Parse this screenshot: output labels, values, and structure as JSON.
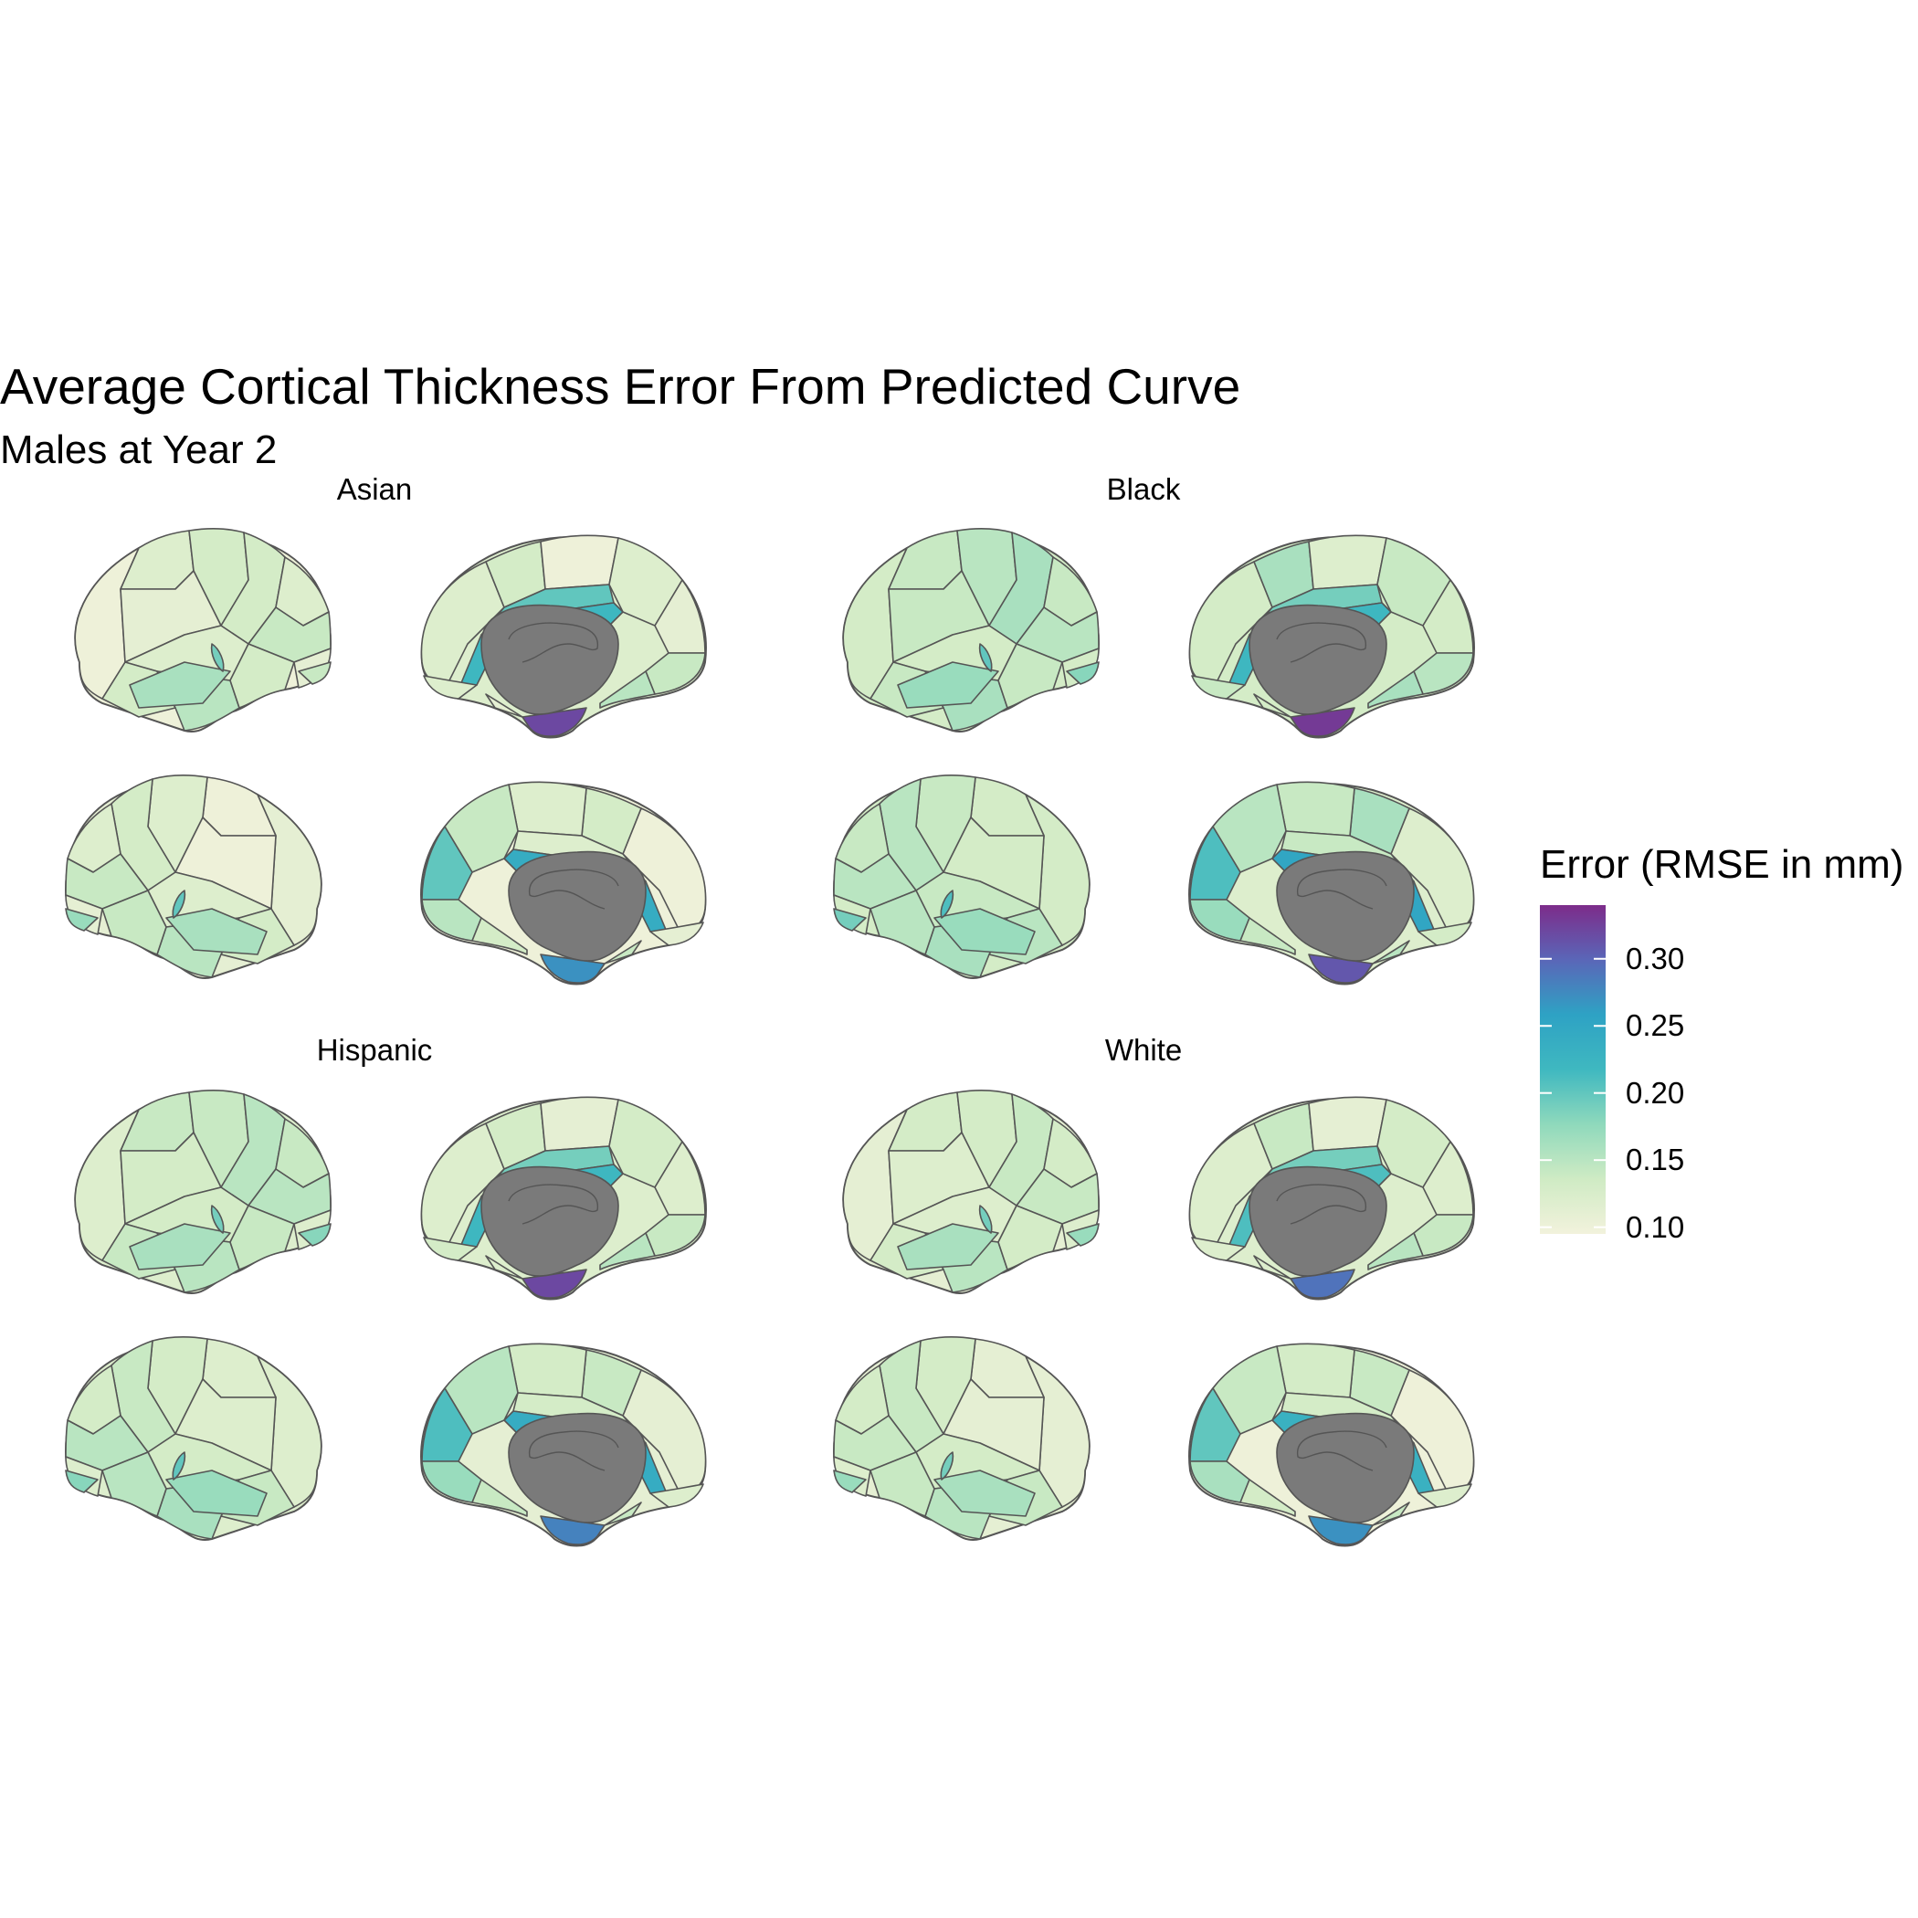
{
  "chart_data": {
    "type": "heatmap",
    "title": "Average Cortical Thickness Error From Predicted Curve",
    "subtitle": "Males at Year 2",
    "facets": [
      "Asian",
      "Black",
      "Hispanic",
      "White"
    ],
    "views": [
      "lateral left",
      "medial left",
      "lateral right",
      "medial right"
    ],
    "legend": {
      "title": "Error (RMSE in mm)",
      "ticks": [
        "0.30",
        "0.25",
        "0.20",
        "0.15",
        "0.10"
      ],
      "range": [
        0.095,
        0.34
      ],
      "colors": [
        "#f2f2dc",
        "#cfebc4",
        "#8fd9bc",
        "#3fb8c0",
        "#2ea2c4",
        "#5a66b8",
        "#7d2c8a"
      ],
      "placement": "right"
    },
    "region_values": {
      "Asian": {
        "lateral_regions": [
          0.1,
          0.12,
          0.13,
          0.11,
          0.13,
          0.12,
          0.14,
          0.12,
          0.13,
          0.15,
          0.13,
          0.11,
          0.16,
          0.19,
          0.14
        ],
        "medial_regions": [
          0.12,
          0.13,
          0.1,
          0.2,
          0.12,
          0.11,
          0.14,
          0.22,
          0.32,
          0.12,
          0.15,
          0.11
        ],
        "lateral_right_regions": [
          0.11,
          0.1,
          0.12,
          0.1,
          0.13,
          0.12,
          0.14,
          0.12,
          0.13,
          0.15,
          0.14,
          0.11,
          0.16,
          0.2,
          0.17
        ],
        "medial_right_regions": [
          0.1,
          0.13,
          0.12,
          0.12,
          0.14,
          0.2,
          0.15,
          0.24,
          0.27,
          0.11,
          0.13,
          0.14
        ]
      },
      "Black": {
        "lateral_regions": [
          0.13,
          0.14,
          0.15,
          0.14,
          0.16,
          0.14,
          0.15,
          0.13,
          0.14,
          0.16,
          0.14,
          0.13,
          0.17,
          0.2,
          0.18
        ],
        "medial_regions": [
          0.13,
          0.16,
          0.12,
          0.19,
          0.14,
          0.13,
          0.15,
          0.22,
          0.33,
          0.14,
          0.16,
          0.13
        ],
        "lateral_right_regions": [
          0.13,
          0.13,
          0.14,
          0.13,
          0.15,
          0.14,
          0.15,
          0.14,
          0.15,
          0.16,
          0.15,
          0.13,
          0.17,
          0.21,
          0.19
        ],
        "medial_right_regions": [
          0.12,
          0.16,
          0.14,
          0.14,
          0.15,
          0.21,
          0.17,
          0.25,
          0.31,
          0.13,
          0.14,
          0.15
        ]
      },
      "Hispanic": {
        "lateral_regions": [
          0.12,
          0.14,
          0.14,
          0.13,
          0.15,
          0.14,
          0.15,
          0.13,
          0.14,
          0.15,
          0.14,
          0.12,
          0.16,
          0.19,
          0.18
        ],
        "medial_regions": [
          0.12,
          0.13,
          0.11,
          0.19,
          0.13,
          0.12,
          0.14,
          0.22,
          0.32,
          0.13,
          0.15,
          0.12
        ],
        "lateral_right_regions": [
          0.12,
          0.12,
          0.13,
          0.12,
          0.14,
          0.13,
          0.15,
          0.13,
          0.14,
          0.16,
          0.15,
          0.12,
          0.17,
          0.2,
          0.18
        ],
        "medial_right_regions": [
          0.11,
          0.14,
          0.13,
          0.13,
          0.15,
          0.21,
          0.17,
          0.24,
          0.28,
          0.12,
          0.14,
          0.14
        ]
      },
      "White": {
        "lateral_regions": [
          0.11,
          0.13,
          0.13,
          0.12,
          0.14,
          0.13,
          0.14,
          0.12,
          0.13,
          0.15,
          0.13,
          0.12,
          0.16,
          0.19,
          0.17
        ],
        "medial_regions": [
          0.12,
          0.14,
          0.11,
          0.19,
          0.13,
          0.12,
          0.14,
          0.21,
          0.29,
          0.12,
          0.15,
          0.12
        ],
        "lateral_right_regions": [
          0.11,
          0.11,
          0.13,
          0.11,
          0.14,
          0.13,
          0.14,
          0.13,
          0.14,
          0.15,
          0.14,
          0.12,
          0.16,
          0.19,
          0.17
        ],
        "medial_right_regions": [
          0.1,
          0.14,
          0.13,
          0.13,
          0.14,
          0.2,
          0.16,
          0.23,
          0.27,
          0.12,
          0.13,
          0.14
        ]
      }
    }
  }
}
